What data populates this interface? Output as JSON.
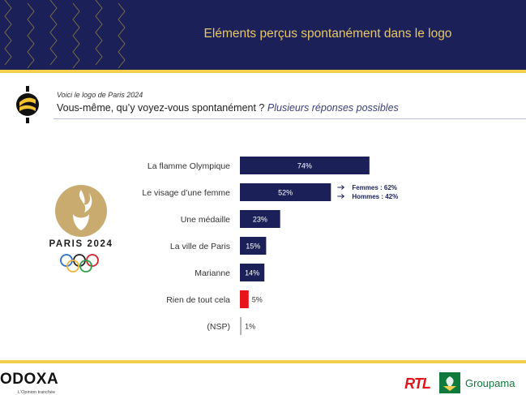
{
  "header": {
    "title": "Eléments perçus spontanément dans le logo"
  },
  "question": {
    "intro": "Voici le logo de Paris 2024",
    "text": "Vous-même, qu’y voyez-vous spontanément ?",
    "emphasis": "Plusieurs réponses possibles"
  },
  "paris_logo": {
    "label": "PARIS 2024"
  },
  "colors": {
    "navy": "#1b2158",
    "gold": "#f2d04e",
    "bar_default": "#1b2158",
    "bar_highlight": "#e8141a",
    "bar_nsp": "#b5b5b5",
    "rtl_red": "#e0161e",
    "groupama_green": "#0f7a3b"
  },
  "chart_data": {
    "type": "bar",
    "orientation": "horizontal",
    "categories": [
      "La flamme Olympique",
      "Le visage d’une femme",
      "Une médaille",
      "La ville de Paris",
      "Marianne",
      "Rien de tout cela",
      "(NSP)"
    ],
    "values": [
      74,
      52,
      23,
      15,
      14,
      5,
      1
    ],
    "value_labels": [
      "74%",
      "52%",
      "23%",
      "15%",
      "14%",
      "5%",
      "1%"
    ],
    "bar_styles": [
      "default",
      "default",
      "default",
      "default",
      "default",
      "highlight",
      "nsp"
    ],
    "xlim": [
      0,
      100
    ],
    "annotations": [
      {
        "category_index": 1,
        "lines": [
          "Femmes : 62%",
          "Hommes : 42%"
        ]
      }
    ]
  },
  "footer": {
    "odoxa_name": "ODOXA",
    "odoxa_tagline": "L'Opinion tranchée",
    "rtl_label": "RTL",
    "groupama_label": "Groupama"
  }
}
